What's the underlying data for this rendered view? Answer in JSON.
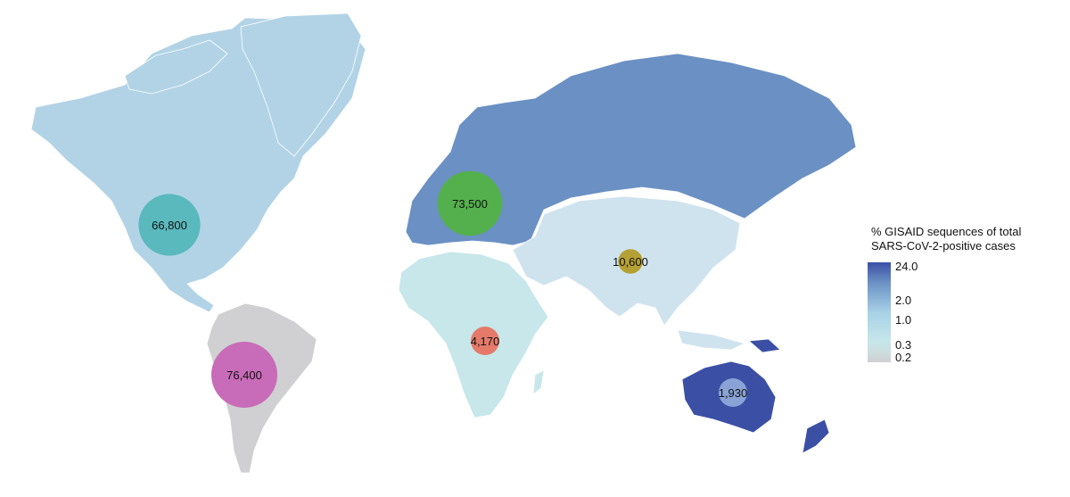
{
  "colors": {
    "americas_north": "#b2d3e6",
    "south_america": "#d0d0d2",
    "europe_russia": "#6b90c4",
    "africa": "#c7e7ea",
    "asia": "#cfe3ef",
    "oceania": "#3b4fa5",
    "border": "#ffffff"
  },
  "regions": [
    {
      "name": "North America",
      "bubble_value": "66,800",
      "bubble_color": "#5ab9bd",
      "cases": 66800
    },
    {
      "name": "South America",
      "bubble_value": "76,400",
      "bubble_color": "#c86bb8",
      "cases": 76400
    },
    {
      "name": "Europe",
      "bubble_value": "73,500",
      "bubble_color": "#54b04c",
      "cases": 73500
    },
    {
      "name": "Asia",
      "bubble_value": "10,600",
      "bubble_color": "#b5a033",
      "cases": 10600
    },
    {
      "name": "Africa",
      "bubble_value": "4,170",
      "bubble_color": "#e57a6a",
      "cases": 4170
    },
    {
      "name": "Oceania",
      "bubble_value": "1,930",
      "bubble_color": "#8aa3d6",
      "cases": 1930
    }
  ],
  "legend": {
    "title_line1": "% GISAID sequences of total",
    "title_line2": "SARS-CoV-2-positive cases",
    "ticks": [
      "24.0",
      "2.0",
      "1.0",
      "0.3",
      "0.2"
    ],
    "gradient_colors": [
      "#3b4fa5",
      "#6b90c4",
      "#a7d1e6",
      "#c7e7ea",
      "#d0d0d2"
    ]
  }
}
